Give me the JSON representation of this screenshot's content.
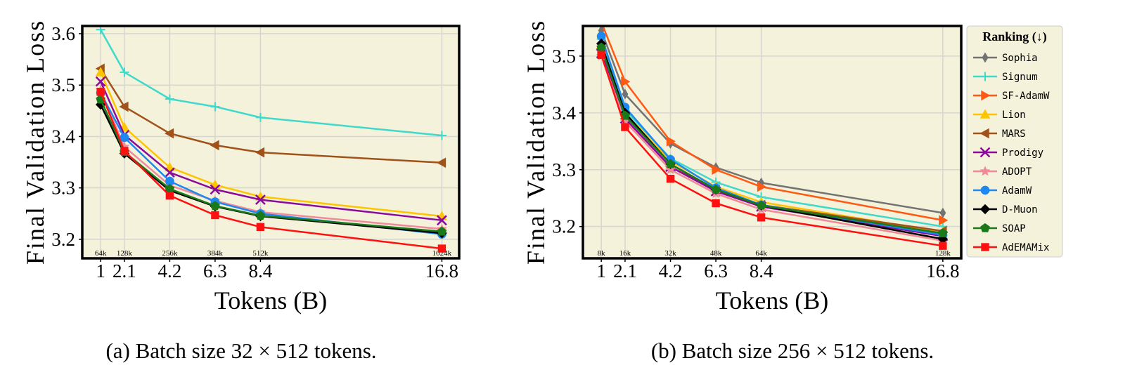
{
  "chart_data": [
    {
      "type": "line",
      "caption": "(a)  Batch size 32 × 512 tokens.",
      "ylabel": "Final Validation Loss",
      "xlabel": "Tokens (B)",
      "x": [
        1,
        2.1,
        4.2,
        6.3,
        8.4,
        16.8
      ],
      "xlim": [
        0.15,
        17.6
      ],
      "xticks": [
        1,
        2.1,
        4.2,
        6.3,
        8.4,
        16.8
      ],
      "ylim": [
        3.163,
        3.615
      ],
      "yticks": [
        3.2,
        3.3,
        3.4,
        3.5,
        3.6
      ],
      "iter_labels": [
        "64k",
        "128k",
        "256k",
        "384k",
        "512k",
        "1024k"
      ],
      "grid": true,
      "background": "#f4f2da",
      "series": [
        {
          "name": "Signum",
          "color": "#3fd9cc",
          "marker": "plus",
          "values": [
            3.608,
            3.525,
            3.473,
            3.458,
            3.437,
            3.402
          ]
        },
        {
          "name": "MARS",
          "color": "#a0521a",
          "marker": "tri-left",
          "values": [
            3.532,
            3.458,
            3.406,
            3.383,
            3.369,
            3.349
          ]
        },
        {
          "name": "Lion",
          "color": "#ffc400",
          "marker": "tri-up",
          "values": [
            3.525,
            3.418,
            3.34,
            3.306,
            3.283,
            3.245
          ]
        },
        {
          "name": "Prodigy",
          "color": "#8b0a9b",
          "marker": "x",
          "values": [
            3.507,
            3.403,
            3.33,
            3.297,
            3.277,
            3.237
          ]
        },
        {
          "name": "ADOPT",
          "color": "#f08a9a",
          "marker": "star",
          "values": [
            3.49,
            3.38,
            3.305,
            3.275,
            3.253,
            3.22
          ]
        },
        {
          "name": "AdamW",
          "color": "#1e88f0",
          "marker": "circle",
          "values": [
            3.485,
            3.398,
            3.313,
            3.273,
            3.25,
            3.21
          ]
        },
        {
          "name": "D-Muon",
          "color": "#000000",
          "marker": "diamond",
          "values": [
            3.462,
            3.367,
            3.295,
            3.264,
            3.245,
            3.212
          ]
        },
        {
          "name": "SOAP",
          "color": "#1a7a1a",
          "marker": "pentagon",
          "values": [
            3.472,
            3.37,
            3.298,
            3.265,
            3.246,
            3.215
          ]
        },
        {
          "name": "AdEMAMix",
          "color": "#ff1010",
          "marker": "square",
          "values": [
            3.487,
            3.372,
            3.285,
            3.247,
            3.224,
            3.182
          ]
        }
      ]
    },
    {
      "type": "line",
      "caption": "(b)  Batch size 256 × 512 tokens.",
      "ylabel": "Final Validation Loss",
      "xlabel": "Tokens (B)",
      "x": [
        1,
        2.1,
        4.2,
        6.3,
        8.4,
        16.8
      ],
      "xlim": [
        0.15,
        17.65
      ],
      "xticks": [
        1,
        2.1,
        4.2,
        6.3,
        8.4,
        16.8
      ],
      "ylim": [
        3.144,
        3.553
      ],
      "yticks": [
        3.2,
        3.3,
        3.4,
        3.5
      ],
      "iter_labels": [
        "8k",
        "16k",
        "32k",
        "48k",
        "64k",
        "128k"
      ],
      "grid": true,
      "background": "#f4f2da",
      "legend": "outside-right",
      "legend_title": "Ranking (↓)",
      "series": [
        {
          "name": "Sophia",
          "color": "#737373",
          "marker": "thin-diamond",
          "values": [
            3.545,
            3.433,
            3.346,
            3.304,
            3.277,
            3.224
          ]
        },
        {
          "name": "Signum",
          "color": "#3fd9cc",
          "marker": "plus",
          "values": [
            3.53,
            3.405,
            3.32,
            3.278,
            3.252,
            3.2
          ]
        },
        {
          "name": "SF-AdamW",
          "color": "#ff5a14",
          "marker": "tri-right",
          "values": [
            3.56,
            3.455,
            3.35,
            3.3,
            3.27,
            3.211
          ]
        },
        {
          "name": "Lion",
          "color": "#ffc400",
          "marker": "tri-up",
          "values": [
            3.52,
            3.4,
            3.315,
            3.27,
            3.243,
            3.19
          ]
        },
        {
          "name": "MARS",
          "color": "#a0521a",
          "marker": "tri-left",
          "values": [
            3.51,
            3.39,
            3.305,
            3.265,
            3.238,
            3.192
          ]
        },
        {
          "name": "Prodigy",
          "color": "#8b0a9b",
          "marker": "x",
          "values": [
            3.505,
            3.39,
            3.305,
            3.262,
            3.235,
            3.183
          ]
        },
        {
          "name": "ADOPT",
          "color": "#f08a9a",
          "marker": "star",
          "values": [
            3.5,
            3.385,
            3.3,
            3.258,
            3.23,
            3.175
          ]
        },
        {
          "name": "AdamW",
          "color": "#1e88f0",
          "marker": "circle",
          "values": [
            3.535,
            3.41,
            3.318,
            3.268,
            3.238,
            3.185
          ]
        },
        {
          "name": "D-Muon",
          "color": "#000000",
          "marker": "diamond",
          "values": [
            3.522,
            3.4,
            3.31,
            3.265,
            3.237,
            3.178
          ]
        },
        {
          "name": "SOAP",
          "color": "#1a7a1a",
          "marker": "pentagon",
          "values": [
            3.515,
            3.395,
            3.31,
            3.265,
            3.237,
            3.188
          ]
        },
        {
          "name": "AdEMAMix",
          "color": "#ff1010",
          "marker": "square",
          "values": [
            3.502,
            3.375,
            3.284,
            3.241,
            3.216,
            3.166
          ]
        }
      ]
    }
  ]
}
